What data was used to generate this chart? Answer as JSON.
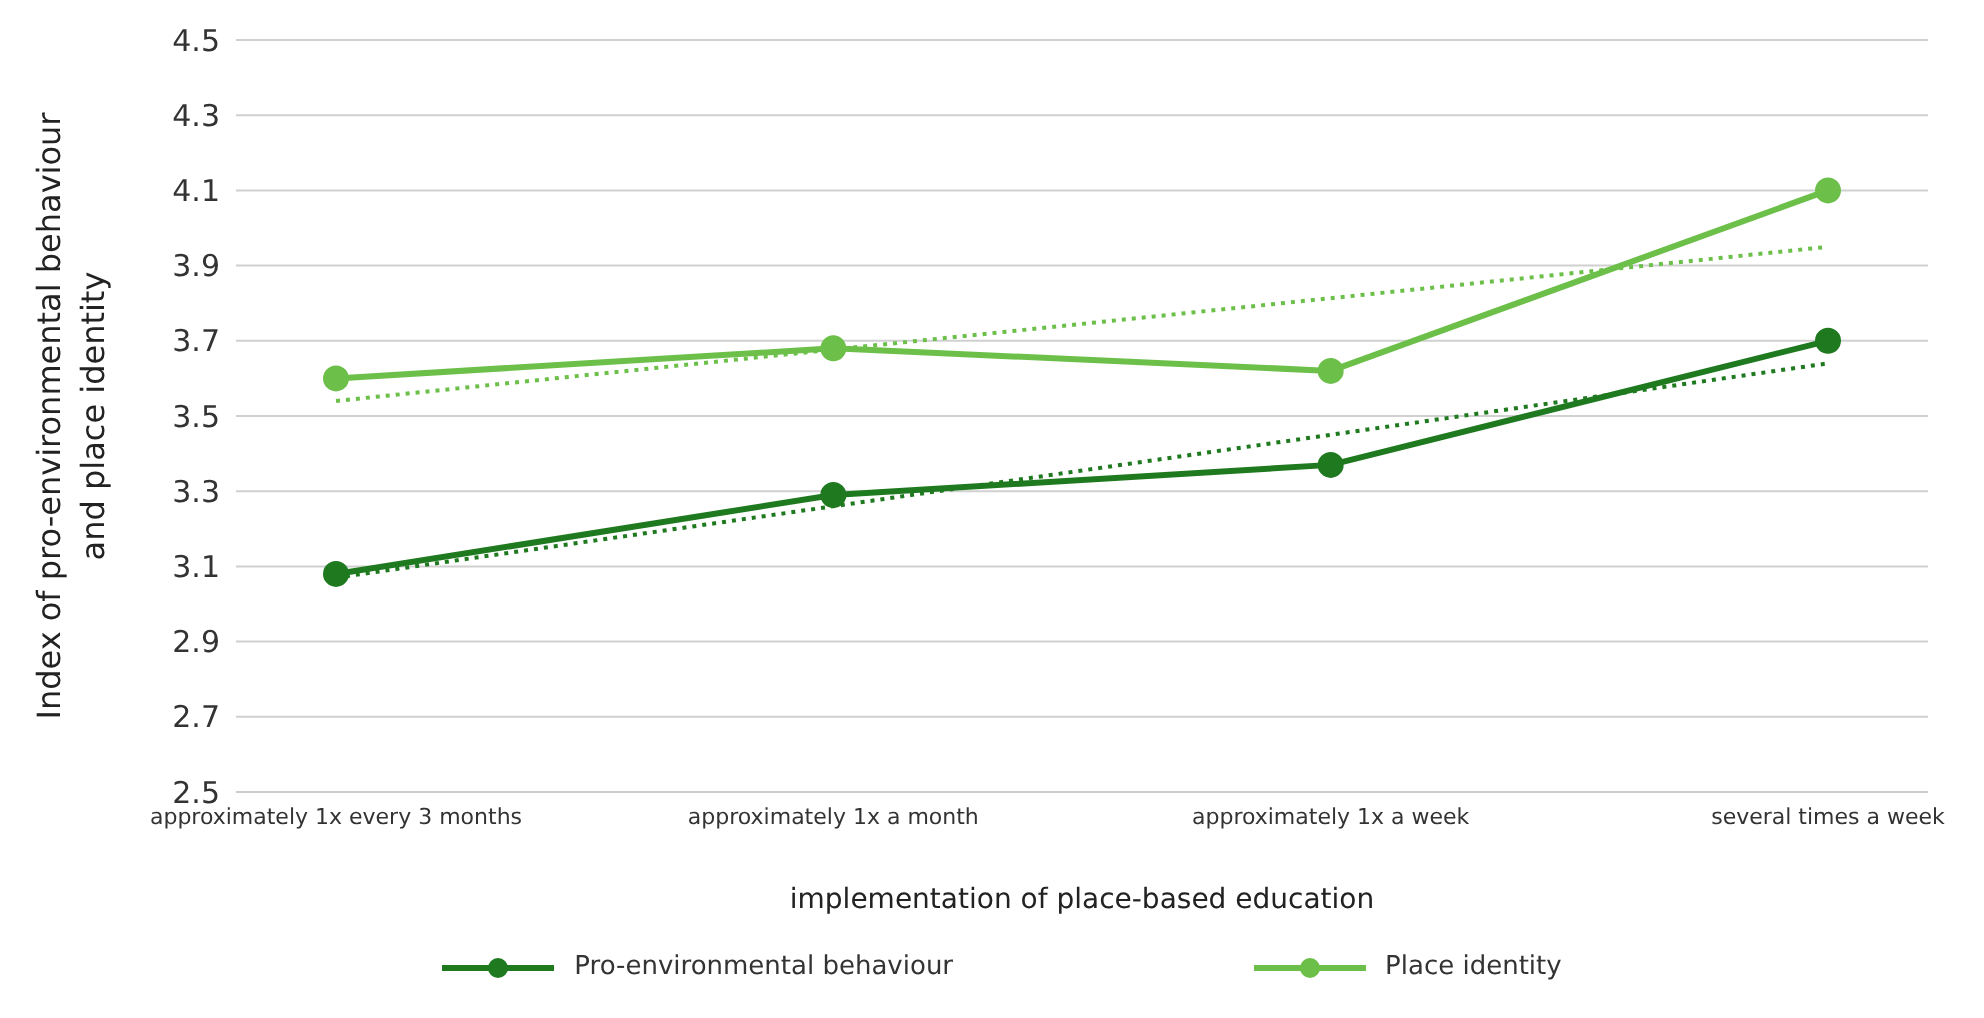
{
  "chart_data": {
    "type": "line",
    "xlabel": "implementation of place-based education",
    "ylabel": "Index of pro-environmental behaviour and place identity",
    "categories": [
      "approximately 1x every 3 months",
      "approximately 1x a month",
      "approximately 1x a week",
      "several times a week"
    ],
    "series": [
      {
        "name": "Pro-environmental behaviour",
        "color": "#1f7a1f",
        "values": [
          3.08,
          3.29,
          3.37,
          3.7
        ],
        "marker": "circle",
        "line_style": "solid"
      },
      {
        "name": "Place identity",
        "color": "#6cc04a",
        "values": [
          3.6,
          3.68,
          3.62,
          4.1
        ],
        "marker": "circle",
        "line_style": "solid"
      },
      {
        "color": "#1f7a1f",
        "values": [
          3.07,
          null,
          null,
          3.64
        ],
        "marker": "none",
        "line_style": "dotted"
      },
      {
        "color": "#6cc04a",
        "values": [
          3.54,
          null,
          null,
          3.95
        ],
        "marker": "none",
        "line_style": "dotted"
      }
    ],
    "ylim": [
      2.5,
      4.5
    ],
    "yticks": [
      2.5,
      2.7,
      2.9,
      3.1,
      3.3,
      3.5,
      3.7,
      3.9,
      4.1,
      4.3,
      4.5
    ],
    "grid": "y",
    "legend": "bottom"
  }
}
